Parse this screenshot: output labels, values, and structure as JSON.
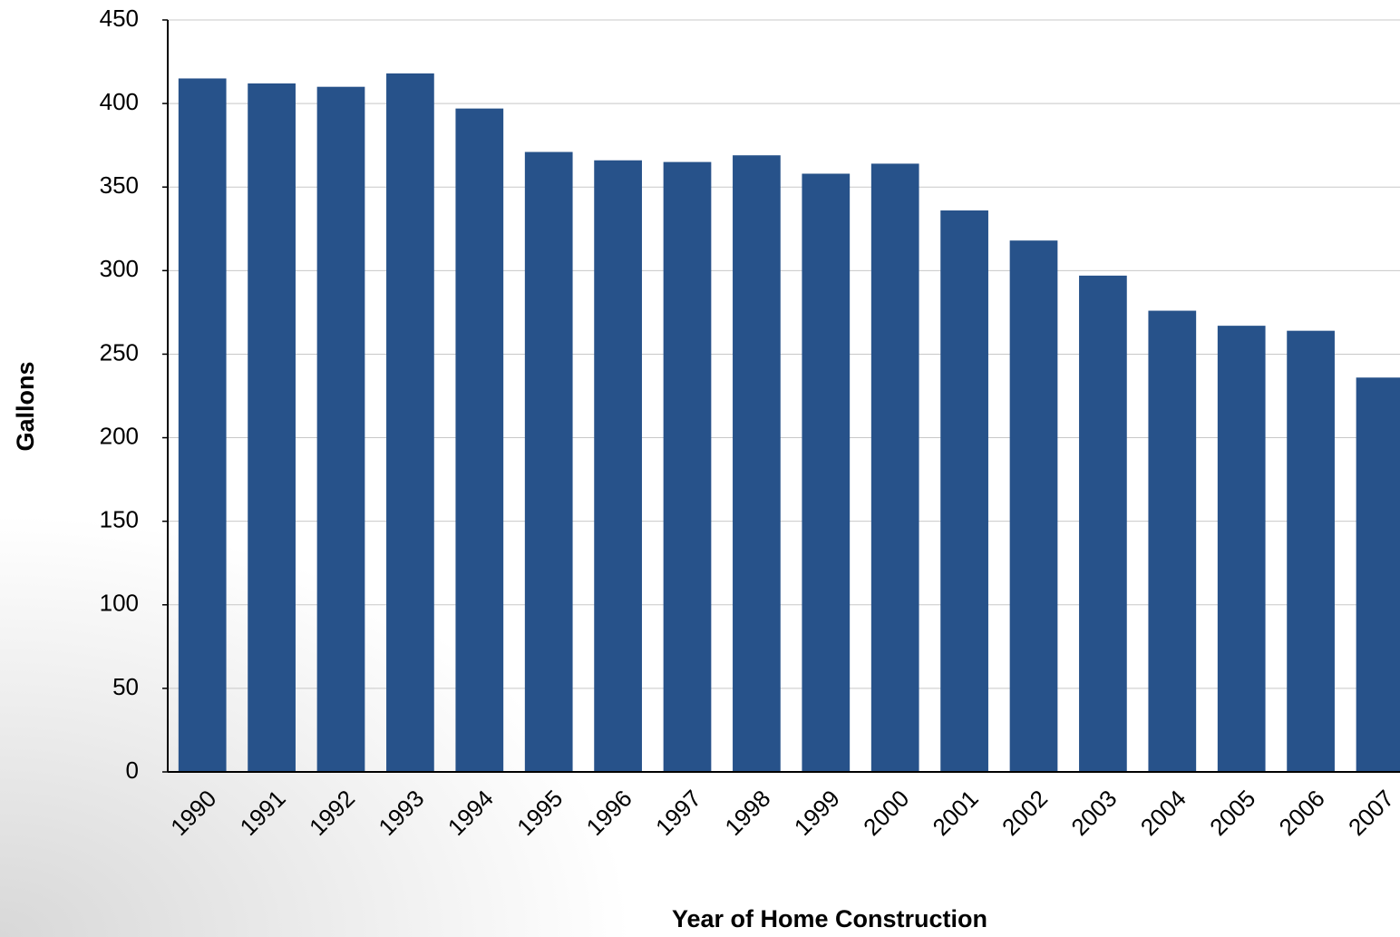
{
  "chart_data": {
    "type": "bar",
    "x_label": "Year of Home Construction",
    "y_label": "Gallons",
    "categories": [
      "1990",
      "1991",
      "1992",
      "1993",
      "1994",
      "1995",
      "1996",
      "1997",
      "1998",
      "1999",
      "2000",
      "2001",
      "2002",
      "2003",
      "2004",
      "2005",
      "2006",
      "2007"
    ],
    "values": [
      415,
      412,
      410,
      418,
      397,
      371,
      366,
      365,
      369,
      358,
      364,
      336,
      318,
      297,
      276,
      267,
      264,
      236
    ],
    "color": "#27528a",
    "ylim": [
      0,
      450
    ],
    "yticks": [
      0,
      50,
      100,
      150,
      200,
      250,
      300,
      350,
      400,
      450
    ],
    "grid": true
  }
}
